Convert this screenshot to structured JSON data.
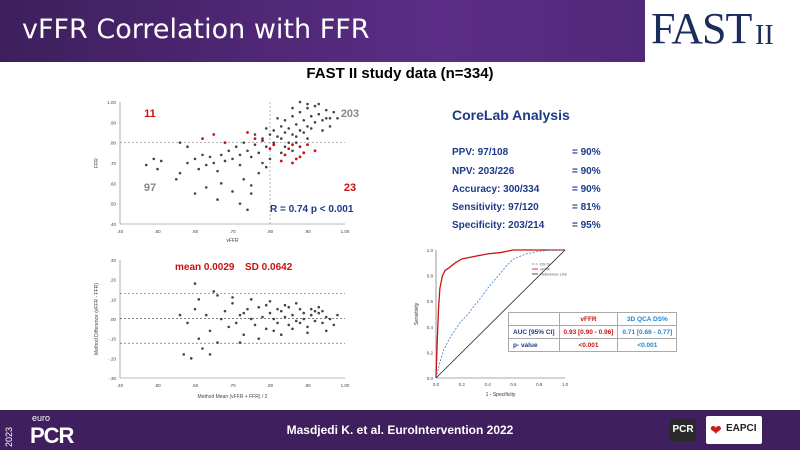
{
  "header": {
    "title": "vFFR Correlation with FFR",
    "logo_text": "FAST",
    "logo_suffix": "II"
  },
  "subtitle": "FAST II study data (n=334)",
  "corelab": {
    "title": "CoreLab Analysis",
    "rows": [
      {
        "label": "PPV: 97/108",
        "value": "= 90%"
      },
      {
        "label": "NPV: 203/226",
        "value": "= 90%"
      },
      {
        "label": "Accuracy: 300/334",
        "value": "= 90%"
      },
      {
        "label": "Sensitivity: 97/120",
        "value": "= 81%"
      },
      {
        "label": "Specificity: 203/214",
        "value": "= 95%"
      }
    ]
  },
  "bland": {
    "mean_label": "mean 0.0029",
    "sd_label": "SD 0.0642"
  },
  "auc_table": {
    "headers": [
      "",
      "vFFR",
      "3D QCA DS%"
    ],
    "rows": [
      {
        "label": "AUC [95% CI]",
        "vffr": "0.93 [0.90 - 0.96]",
        "qca": "0.71 [0.66 - 0.77]"
      },
      {
        "label": "p- value",
        "vffr": "<0.001",
        "qca": "<0.001"
      }
    ]
  },
  "colors": {
    "header_bg": "#4b2570",
    "vffr": "#cc1111",
    "qca": "#1a8ad0",
    "navy": "#1d3a8a"
  },
  "chart_data": [
    {
      "type": "scatter",
      "title": "",
      "xlabel": "vFFR",
      "ylabel": "FFR",
      "xlim": [
        0.4,
        1.0
      ],
      "ylim": [
        0.4,
        1.0
      ],
      "x_ticks": [
        ".40",
        ".50",
        ".60",
        ".70",
        ".80",
        ".90",
        "1.00"
      ],
      "y_ticks": [
        ".40",
        ".50",
        ".60",
        ".70",
        ".80",
        ".90",
        "1.00"
      ],
      "cutoff": 0.8,
      "quadrant_labels": [
        {
          "text": "11",
          "color": "#cc1111",
          "pos": "top-left"
        },
        {
          "text": "203",
          "color": "#888888",
          "pos": "top-right"
        },
        {
          "text": "97",
          "color": "#888888",
          "pos": "bottom-left"
        },
        {
          "text": "23",
          "color": "#cc1111",
          "pos": "bottom-right"
        }
      ],
      "annotation": "R = 0.74  p < 0.001",
      "points_gray": [
        [
          0.47,
          0.69
        ],
        [
          0.49,
          0.72
        ],
        [
          0.51,
          0.71
        ],
        [
          0.5,
          0.67
        ],
        [
          0.55,
          0.62
        ],
        [
          0.56,
          0.65
        ],
        [
          0.58,
          0.7
        ],
        [
          0.6,
          0.72
        ],
        [
          0.61,
          0.67
        ],
        [
          0.62,
          0.74
        ],
        [
          0.63,
          0.69
        ],
        [
          0.64,
          0.73
        ],
        [
          0.65,
          0.7
        ],
        [
          0.66,
          0.66
        ],
        [
          0.67,
          0.74
        ],
        [
          0.68,
          0.71
        ],
        [
          0.69,
          0.76
        ],
        [
          0.7,
          0.72
        ],
        [
          0.71,
          0.78
        ],
        [
          0.72,
          0.74
        ],
        [
          0.72,
          0.69
        ],
        [
          0.73,
          0.8
        ],
        [
          0.74,
          0.76
        ],
        [
          0.75,
          0.73
        ],
        [
          0.76,
          0.79
        ],
        [
          0.77,
          0.75
        ],
        [
          0.78,
          0.82
        ],
        [
          0.79,
          0.78
        ],
        [
          0.8,
          0.84
        ],
        [
          0.81,
          0.8
        ],
        [
          0.81,
          0.86
        ],
        [
          0.82,
          0.83
        ],
        [
          0.83,
          0.88
        ],
        [
          0.84,
          0.85
        ],
        [
          0.84,
          0.91
        ],
        [
          0.85,
          0.87
        ],
        [
          0.86,
          0.93
        ],
        [
          0.86,
          0.84
        ],
        [
          0.87,
          0.89
        ],
        [
          0.88,
          0.95
        ],
        [
          0.88,
          0.86
        ],
        [
          0.89,
          0.91
        ],
        [
          0.9,
          0.97
        ],
        [
          0.9,
          0.88
        ],
        [
          0.91,
          0.93
        ],
        [
          0.92,
          0.9
        ],
        [
          0.92,
          0.98
        ],
        [
          0.93,
          0.94
        ],
        [
          0.94,
          0.91
        ],
        [
          0.95,
          0.96
        ],
        [
          0.96,
          0.92
        ],
        [
          0.97,
          0.95
        ],
        [
          0.83,
          0.82
        ],
        [
          0.85,
          0.8
        ],
        [
          0.87,
          0.83
        ],
        [
          0.89,
          0.85
        ],
        [
          0.91,
          0.87
        ],
        [
          0.82,
          0.92
        ],
        [
          0.86,
          0.97
        ],
        [
          0.88,
          1.0
        ],
        [
          0.9,
          0.99
        ],
        [
          0.93,
          0.99
        ],
        [
          0.95,
          0.92
        ],
        [
          0.98,
          0.92
        ],
        [
          0.6,
          0.55
        ],
        [
          0.63,
          0.58
        ],
        [
          0.67,
          0.6
        ],
        [
          0.7,
          0.56
        ],
        [
          0.73,
          0.62
        ],
        [
          0.75,
          0.59
        ],
        [
          0.77,
          0.65
        ],
        [
          0.79,
          0.68
        ],
        [
          0.66,
          0.52
        ],
        [
          0.72,
          0.5
        ],
        [
          0.75,
          0.55
        ],
        [
          0.74,
          0.47
        ],
        [
          0.78,
          0.7
        ],
        [
          0.8,
          0.72
        ],
        [
          0.83,
          0.75
        ],
        [
          0.86,
          0.76
        ],
        [
          0.58,
          0.78
        ],
        [
          0.56,
          0.8
        ],
        [
          0.76,
          0.84
        ],
        [
          0.79,
          0.87
        ],
        [
          0.84,
          0.78
        ],
        [
          0.87,
          0.8
        ],
        [
          0.9,
          0.82
        ],
        [
          0.94,
          0.86
        ],
        [
          0.96,
          0.88
        ]
      ],
      "points_red": [
        [
          0.62,
          0.82
        ],
        [
          0.65,
          0.84
        ],
        [
          0.68,
          0.8
        ],
        [
          0.74,
          0.85
        ],
        [
          0.76,
          0.82
        ],
        [
          0.78,
          0.81
        ],
        [
          0.85,
          0.77
        ],
        [
          0.86,
          0.79
        ],
        [
          0.88,
          0.78
        ],
        [
          0.84,
          0.74
        ],
        [
          0.87,
          0.72
        ],
        [
          0.81,
          0.79
        ],
        [
          0.89,
          0.75
        ],
        [
          0.9,
          0.79
        ],
        [
          0.92,
          0.76
        ],
        [
          0.83,
          0.71
        ],
        [
          0.86,
          0.7
        ],
        [
          0.88,
          0.73
        ],
        [
          0.8,
          0.77
        ]
      ]
    },
    {
      "type": "scatter",
      "title": "",
      "xlabel": "Method Mean (vFFR + FFR) / 2",
      "ylabel": "Method Difference (vFFR - FFR)",
      "xlim": [
        0.4,
        1.0
      ],
      "ylim": [
        -0.3,
        0.3
      ],
      "x_ticks": [
        ".40",
        ".50",
        ".60",
        ".70",
        ".80",
        ".90",
        "1.00"
      ],
      "y_ticks": [
        ".30",
        ".20",
        ".10",
        ".00",
        "-.10",
        "-.20",
        "-.30"
      ],
      "mean_line": 0.0029,
      "upper_loa": 0.129,
      "lower_loa": -0.123,
      "points": [
        [
          0.58,
          -0.02
        ],
        [
          0.6,
          0.05
        ],
        [
          0.61,
          -0.1
        ],
        [
          0.63,
          0.02
        ],
        [
          0.64,
          -0.06
        ],
        [
          0.65,
          0.14
        ],
        [
          0.66,
          -0.12
        ],
        [
          0.67,
          0.0
        ],
        [
          0.68,
          0.04
        ],
        [
          0.69,
          -0.04
        ],
        [
          0.7,
          0.08
        ],
        [
          0.71,
          -0.02
        ],
        [
          0.72,
          0.02
        ],
        [
          0.73,
          -0.08
        ],
        [
          0.74,
          0.05
        ],
        [
          0.75,
          0.0
        ],
        [
          0.76,
          -0.03
        ],
        [
          0.77,
          0.06
        ],
        [
          0.78,
          0.01
        ],
        [
          0.79,
          -0.05
        ],
        [
          0.8,
          0.03
        ],
        [
          0.81,
          0.0
        ],
        [
          0.82,
          -0.02
        ],
        [
          0.83,
          0.04
        ],
        [
          0.84,
          0.01
        ],
        [
          0.85,
          -0.03
        ],
        [
          0.86,
          0.02
        ],
        [
          0.87,
          -0.01
        ],
        [
          0.88,
          0.05
        ],
        [
          0.89,
          0.0
        ],
        [
          0.9,
          -0.04
        ],
        [
          0.91,
          0.02
        ],
        [
          0.92,
          -0.01
        ],
        [
          0.93,
          0.03
        ],
        [
          0.94,
          -0.02
        ],
        [
          0.95,
          0.01
        ],
        [
          0.96,
          0.0
        ],
        [
          0.97,
          -0.03
        ],
        [
          0.98,
          0.02
        ],
        [
          0.62,
          -0.15
        ],
        [
          0.64,
          -0.18
        ],
        [
          0.59,
          -0.2
        ],
        [
          0.61,
          0.1
        ],
        [
          0.66,
          0.12
        ],
        [
          0.7,
          0.11
        ],
        [
          0.72,
          -0.12
        ],
        [
          0.8,
          0.09
        ],
        [
          0.83,
          -0.08
        ],
        [
          0.87,
          0.08
        ],
        [
          0.9,
          -0.07
        ],
        [
          0.93,
          0.06
        ],
        [
          0.95,
          -0.06
        ],
        [
          0.56,
          0.02
        ],
        [
          0.57,
          -0.18
        ],
        [
          0.6,
          0.18
        ],
        [
          0.77,
          -0.1
        ],
        [
          0.79,
          0.07
        ],
        [
          0.81,
          -0.06
        ],
        [
          0.84,
          0.07
        ],
        [
          0.86,
          -0.05
        ],
        [
          0.88,
          -0.02
        ],
        [
          0.91,
          0.05
        ],
        [
          0.94,
          0.04
        ],
        [
          0.75,
          0.1
        ],
        [
          0.73,
          0.03
        ],
        [
          0.82,
          0.05
        ],
        [
          0.85,
          0.06
        ],
        [
          0.89,
          0.03
        ],
        [
          0.92,
          0.04
        ]
      ]
    },
    {
      "type": "line",
      "title": "",
      "xlabel": "1 - Specificity",
      "ylabel": "Sensitivity",
      "xlim": [
        0,
        1
      ],
      "ylim": [
        0,
        1
      ],
      "x_ticks": [
        "0.0",
        "0.2",
        "0.4",
        "0.6",
        "0.8",
        "1.0"
      ],
      "y_ticks": [
        "0.0",
        "0.2",
        "0.4",
        "0.6",
        "0.8",
        "1.0"
      ],
      "legend": [
        "DS %",
        "vFFR",
        "Reference Line"
      ],
      "legend_placement": "top-right",
      "series": [
        {
          "name": "vFFR",
          "color": "#cc1111",
          "x": [
            0,
            0.01,
            0.02,
            0.03,
            0.05,
            0.07,
            0.1,
            0.15,
            0.2,
            0.3,
            0.4,
            0.5,
            0.6,
            1.0
          ],
          "y": [
            0,
            0.3,
            0.55,
            0.7,
            0.8,
            0.84,
            0.86,
            0.9,
            0.93,
            0.95,
            0.97,
            0.98,
            1.0,
            1.0
          ]
        },
        {
          "name": "DS %",
          "color": "#3a7fc8",
          "x": [
            0,
            0.03,
            0.06,
            0.1,
            0.15,
            0.2,
            0.25,
            0.3,
            0.35,
            0.4,
            0.45,
            0.5,
            0.55,
            0.6,
            0.7,
            0.8,
            0.9,
            1.0
          ],
          "y": [
            0,
            0.12,
            0.22,
            0.3,
            0.38,
            0.45,
            0.5,
            0.57,
            0.63,
            0.7,
            0.76,
            0.82,
            0.88,
            0.93,
            0.97,
            0.99,
            1.0,
            1.0
          ]
        },
        {
          "name": "Reference Line",
          "color": "#222222",
          "x": [
            0,
            1
          ],
          "y": [
            0,
            1
          ]
        }
      ]
    }
  ],
  "footer": {
    "citation": "Masdjedi K. et al. EuroIntervention 2022",
    "year": "2023",
    "euro": "euro",
    "pcr": "PCR",
    "pcr_badge": "PCR",
    "eapci": "EAPCI"
  }
}
